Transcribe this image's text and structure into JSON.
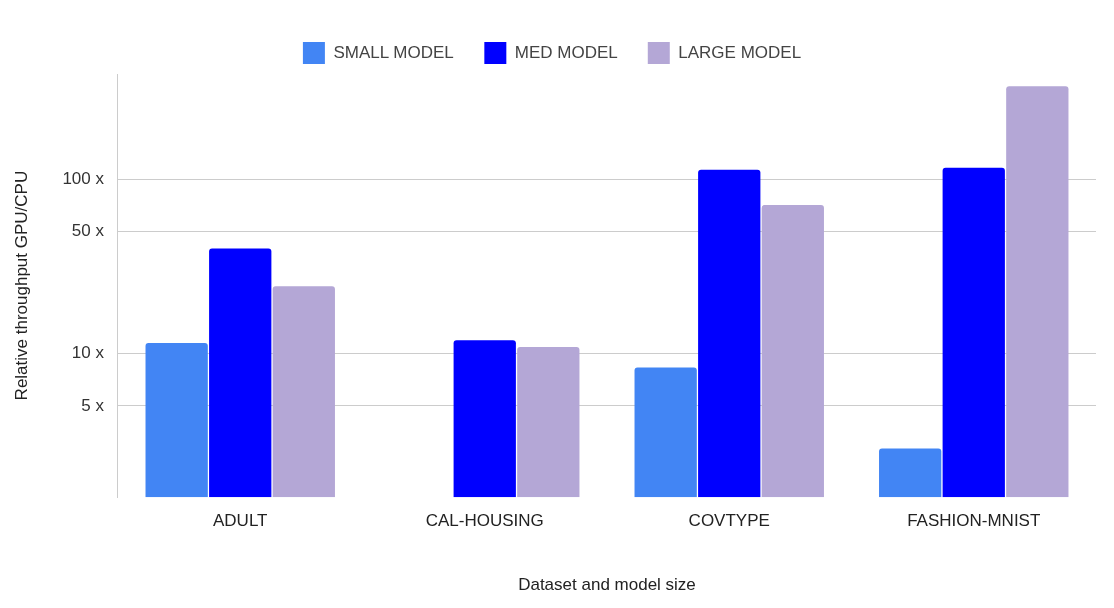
{
  "chart_data": {
    "type": "bar",
    "xlabel": "Dataset and model size",
    "ylabel": "Relative throughput GPU/CPU",
    "categories": [
      "ADULT",
      "CAL-HOUSING",
      "COVTYPE",
      "FASHION-MNIST"
    ],
    "series": [
      {
        "name": "SMALL MODEL",
        "color": "#4285f4",
        "values": [
          11.5,
          null,
          8.3,
          2.85
        ]
      },
      {
        "name": "MED MODEL",
        "color": "#0000ff",
        "values": [
          40,
          11.9,
          113,
          116
        ]
      },
      {
        "name": "LARGE MODEL",
        "color": "#b4a7d6",
        "values": [
          24.3,
          10.9,
          71,
          340
        ]
      }
    ],
    "log": "y",
    "ylim": [
      1.5,
      400
    ],
    "yticks": [
      {
        "value": 5,
        "label": "5 x"
      },
      {
        "value": 10,
        "label": "10 x"
      },
      {
        "value": 50,
        "label": "50 x"
      },
      {
        "value": 100,
        "label": "100 x"
      }
    ],
    "grid": "y",
    "legend": "top"
  }
}
